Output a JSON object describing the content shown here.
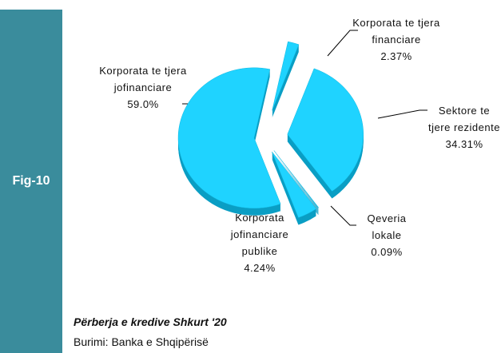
{
  "chart_data": {
    "type": "pie",
    "categories": [
      "Korporata te tjera financiare",
      "Sektore te tjere rezidente",
      "Qeveria lokale",
      "Korporata jofinanciare publike",
      "Korporata te tjera jofinanciare"
    ],
    "values": [
      2.37,
      34.31,
      0.09,
      4.24,
      59.0
    ],
    "value_labels": [
      "2.37%",
      "34.31%",
      "0.09%",
      "4.24%",
      "59.0%"
    ],
    "color": "#1fd3ff"
  },
  "sidebar": {
    "label": "Fig-10"
  },
  "caption": {
    "title": "Përberja e kredive Shkurt '20",
    "source": "Burimi: Banka e Shqipërisë"
  }
}
